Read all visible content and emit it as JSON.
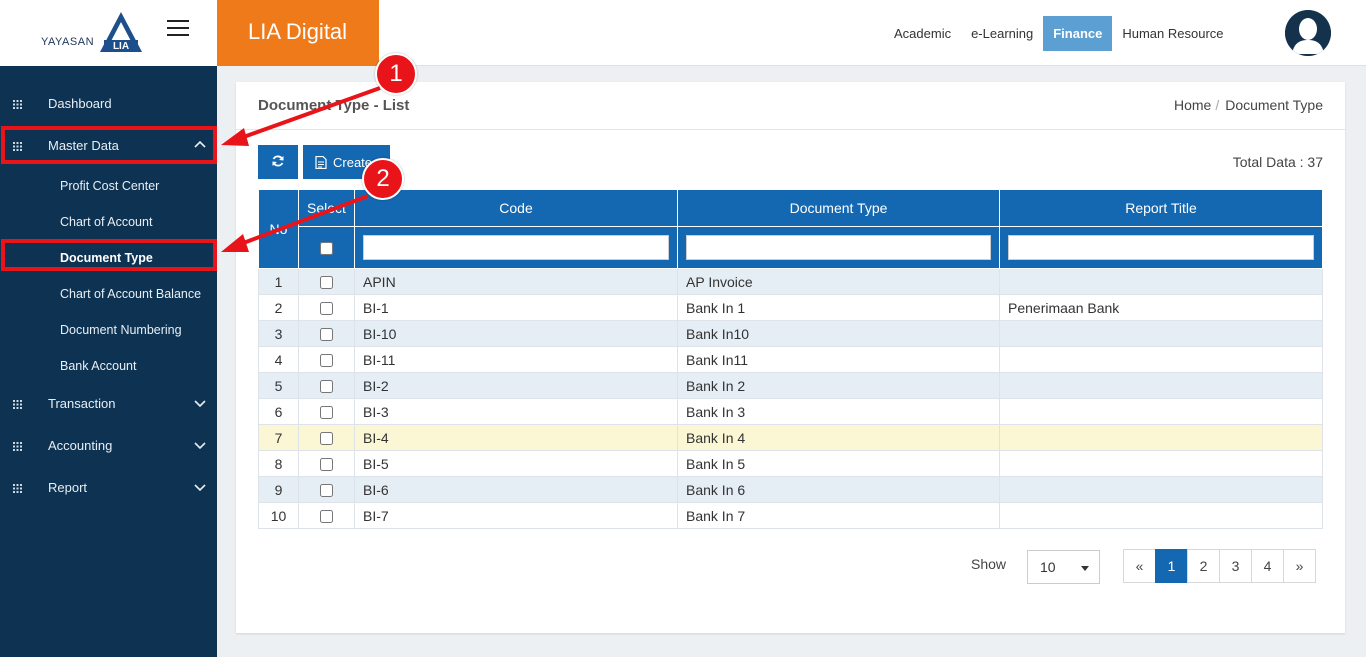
{
  "header": {
    "logo_text": "YAYASAN",
    "logo_mark_text": "LIA",
    "brand": "LIA Digital",
    "nav": [
      "Academic",
      "e-Learning",
      "Finance",
      "Human Resource"
    ],
    "active_nav": "Finance"
  },
  "sidebar": {
    "items": [
      {
        "label": "Dashboard"
      },
      {
        "label": "Master Data"
      },
      {
        "label": "Transaction"
      },
      {
        "label": "Accounting"
      },
      {
        "label": "Report"
      }
    ],
    "sub_items": [
      "Profit Cost Center",
      "Chart of Account",
      "Document Type",
      "Chart of Account Balance",
      "Document Numbering",
      "Bank Account"
    ]
  },
  "content": {
    "title": "Document Type - List",
    "breadcrumb": [
      "Home",
      "Document Type"
    ],
    "create_label": "Create",
    "total_label": "Total Data : 37"
  },
  "table": {
    "headers": [
      "No",
      "Select",
      "Code",
      "Document Type",
      "Report Title"
    ],
    "rows": [
      {
        "no": "1",
        "code": "APIN",
        "type": "AP Invoice",
        "title": ""
      },
      {
        "no": "2",
        "code": "BI-1",
        "type": "Bank In 1",
        "title": "Penerimaan Bank"
      },
      {
        "no": "3",
        "code": "BI-10",
        "type": "Bank In10",
        "title": ""
      },
      {
        "no": "4",
        "code": "BI-11",
        "type": "Bank In11",
        "title": ""
      },
      {
        "no": "5",
        "code": "BI-2",
        "type": "Bank In 2",
        "title": ""
      },
      {
        "no": "6",
        "code": "BI-3",
        "type": "Bank In 3",
        "title": ""
      },
      {
        "no": "7",
        "code": "BI-4",
        "type": "Bank In 4",
        "title": ""
      },
      {
        "no": "8",
        "code": "BI-5",
        "type": "Bank In 5",
        "title": ""
      },
      {
        "no": "9",
        "code": "BI-6",
        "type": "Bank In 6",
        "title": ""
      },
      {
        "no": "10",
        "code": "BI-7",
        "type": "Bank In 7",
        "title": ""
      }
    ]
  },
  "pagination": {
    "show_label": "Show",
    "page_size": "10",
    "prev": "«",
    "pages": [
      "1",
      "2",
      "3",
      "4"
    ],
    "next": "»",
    "current": "1"
  },
  "annotations": {
    "step1": "1",
    "step2": "2"
  },
  "colors": {
    "sidebar": "#0e3352",
    "brand": "#ef7a1a",
    "primary": "#1467b1",
    "highlight": "#e8141a"
  }
}
